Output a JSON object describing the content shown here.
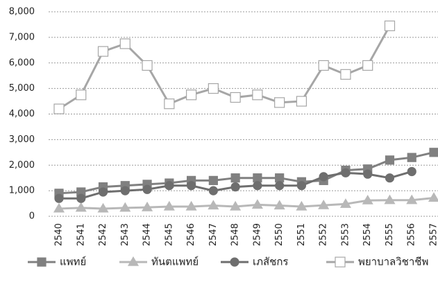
{
  "chart_data": {
    "type": "line",
    "categories": [
      "2540",
      "2541",
      "2542",
      "2543",
      "2544",
      "2545",
      "2546",
      "2547",
      "2548",
      "2549",
      "2550",
      "2551",
      "2552",
      "2553",
      "2554",
      "2555",
      "2556",
      "2557"
    ],
    "series": [
      {
        "name": "แพทย์",
        "color": "#808080",
        "marker": "square",
        "values": [
          900,
          950,
          1150,
          1200,
          1250,
          1300,
          1400,
          1400,
          1500,
          1500,
          1500,
          1350,
          1400,
          1800,
          1850,
          2200,
          2300,
          2500
        ]
      },
      {
        "name": "ทันตแพทย์",
        "color": "#b8b8b8",
        "marker": "triangle",
        "values": [
          300,
          330,
          300,
          330,
          350,
          380,
          380,
          420,
          380,
          450,
          420,
          380,
          430,
          480,
          620,
          630,
          630,
          720
        ]
      },
      {
        "name": "เภสัชกร",
        "color": "#6e6e6e",
        "marker": "circle",
        "values": [
          700,
          700,
          950,
          1000,
          1050,
          1200,
          1200,
          1000,
          1150,
          1200,
          1200,
          1200,
          1550,
          1700,
          1650,
          1500,
          1750,
          null
        ]
      },
      {
        "name": "พยาบาลวิชาชีพ",
        "color": "#a6a6a6",
        "marker": "open-square",
        "values": [
          4200,
          4750,
          6450,
          6750,
          5900,
          4400,
          4750,
          5000,
          4650,
          4750,
          4450,
          4500,
          5900,
          5550,
          5900,
          7450,
          null,
          null
        ]
      }
    ],
    "ylim": [
      0,
      8000
    ],
    "yticks": [
      0,
      {
        "value": 1000,
        "label": "1,000"
      },
      {
        "value": 2000,
        "label": "2,000"
      },
      {
        "value": 3000,
        "label": "3,000"
      },
      {
        "value": 4000,
        "label": "4,000"
      },
      {
        "value": 5000,
        "label": "5,000"
      },
      {
        "value": 6000,
        "label": "6,000"
      },
      {
        "value": 7000,
        "label": "7,000"
      },
      {
        "value": 8000,
        "label": "8,000"
      }
    ],
    "grid": true,
    "legend": "bottom"
  }
}
